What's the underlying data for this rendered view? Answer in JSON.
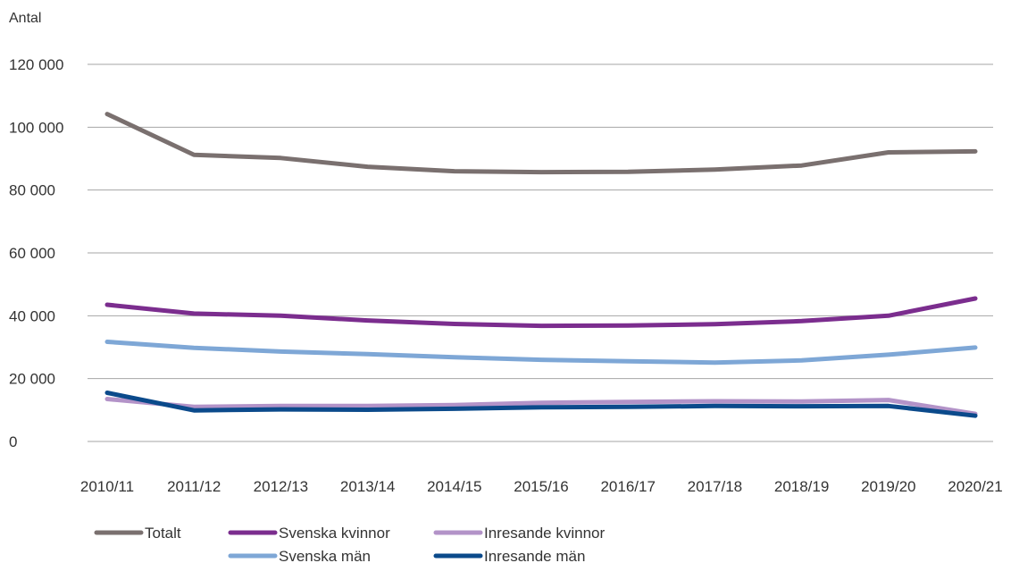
{
  "chart_data": {
    "type": "line",
    "title": "",
    "xlabel": "",
    "ylabel": "Antal",
    "ylim": [
      0,
      120000
    ],
    "y_ticks": [
      0,
      20000,
      40000,
      60000,
      80000,
      100000,
      120000
    ],
    "y_tick_labels": [
      "0",
      "20 000",
      "40 000",
      "60 000",
      "80 000",
      "100 000",
      "120 000"
    ],
    "grid": true,
    "legend_position": "bottom",
    "categories": [
      "2010/11",
      "2011/12",
      "2012/13",
      "2013/14",
      "2014/15",
      "2015/16",
      "2016/17",
      "2017/18",
      "2018/19",
      "2019/20",
      "2020/21"
    ],
    "series": [
      {
        "name": "Totalt",
        "color": "#7a706f",
        "values": [
          104200,
          91200,
          90200,
          87400,
          86000,
          85700,
          85800,
          86500,
          87800,
          92000,
          92300
        ]
      },
      {
        "name": "Svenska kvinnor",
        "color": "#7b2d8e",
        "values": [
          43500,
          40700,
          40000,
          38500,
          37400,
          36800,
          36900,
          37300,
          38300,
          40000,
          45500
        ]
      },
      {
        "name": "Inresande kvinnor",
        "color": "#b393c8",
        "values": [
          13500,
          11000,
          11300,
          11300,
          11600,
          12300,
          12600,
          12800,
          12700,
          13200,
          8800
        ]
      },
      {
        "name": "Svenska män",
        "color": "#7ea7d6",
        "values": [
          31700,
          29800,
          28600,
          27800,
          26800,
          26000,
          25500,
          25100,
          25800,
          27600,
          29900
        ]
      },
      {
        "name": "Inresande män",
        "color": "#0b4a8b",
        "values": [
          15500,
          9900,
          10200,
          10100,
          10400,
          10900,
          11000,
          11300,
          11200,
          11300,
          8200
        ]
      }
    ]
  }
}
